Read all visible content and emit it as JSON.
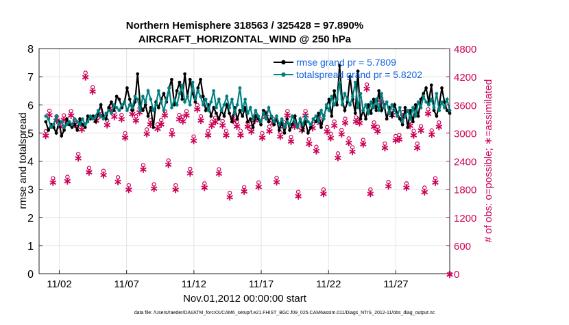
{
  "chart_data": {
    "type": "line",
    "title_line1": "Northern Hemisphere 318563 / 325428 = 97.890%",
    "title_line2": "AIRCRAFT_HORIZONTAL_WIND @ 250 hPa",
    "xlabel": "Nov.01,2012 00:00:00 start",
    "ylabel_left": "rmse and totalspread",
    "ylabel_right": "# of obs: o=possible; ∗=assimilated",
    "footer": "data file: /Users/raeder/DAI/ATM_forcXX/CAM6_setup/f.e21.FHIST_BGC.f09_025.CAM6assim.011/Diags_NTrS_2012-11/obs_diag_output.nc",
    "x_range": [
      0.5,
      31
    ],
    "x_ticks": [
      {
        "label": "11/02",
        "value": 2
      },
      {
        "label": "11/07",
        "value": 7
      },
      {
        "label": "11/12",
        "value": 12
      },
      {
        "label": "11/17",
        "value": 17
      },
      {
        "label": "11/22",
        "value": 22
      },
      {
        "label": "11/27",
        "value": 27
      }
    ],
    "y_left_range": [
      0,
      8
    ],
    "y_left_ticks": [
      "0",
      "1",
      "2",
      "3",
      "4",
      "5",
      "6",
      "7",
      "8"
    ],
    "y_right_range": [
      0,
      4800
    ],
    "y_right_ticks": [
      "0",
      "600",
      "1200",
      "1800",
      "2400",
      "3000",
      "3600",
      "4200",
      "4800"
    ],
    "colors": {
      "rmse": "#000000",
      "spread": "#008080",
      "obs": "#cc0055"
    },
    "series": [
      {
        "name": "rmse grand pr = 5.7809",
        "values": [
          5.4,
          5.1,
          5.3,
          5.2,
          5.0,
          5.4,
          4.9,
          5.1,
          5.5,
          5.3,
          5.2,
          5.3,
          5.1,
          5.5,
          5.3,
          5.2,
          5.6,
          5.5,
          5.6,
          5.4,
          5.7,
          6.0,
          5.6,
          5.5,
          5.9,
          6.1,
          5.8,
          6.3,
          6.2,
          5.9,
          6.1,
          6.6,
          6.2,
          5.8,
          6.1,
          7.1,
          6.0,
          5.8,
          6.0,
          5.6,
          5.9,
          5.2,
          6.1,
          5.9,
          6.2,
          6.4,
          6.1,
          6.6,
          6.9,
          6.0,
          6.5,
          6.8,
          6.2,
          7.1,
          6.3,
          6.9,
          6.4,
          6.1,
          6.6,
          6.9,
          6.3,
          5.8,
          6.0,
          5.6,
          5.9,
          5.7,
          5.5,
          5.8,
          5.6,
          6.0,
          5.7,
          5.4,
          5.9,
          5.5,
          5.8,
          5.6,
          5.9,
          5.4,
          5.5,
          5.2,
          5.6,
          5.5,
          5.3,
          5.8,
          5.7,
          5.4,
          5.6,
          5.3,
          5.5,
          5.1,
          5.4,
          5.0,
          5.5,
          5.1,
          5.3,
          5.6,
          5.2,
          5.5,
          5.1,
          5.4,
          5.0,
          5.2,
          5.5,
          5.4,
          5.7,
          5.2,
          5.6,
          5.9,
          6.2,
          5.6,
          6.5,
          6.0,
          7.4,
          6.2,
          5.8,
          6.1,
          7.0,
          6.2,
          5.7,
          7.2,
          5.5,
          5.8,
          5.5,
          6.0,
          5.7,
          6.2,
          5.8,
          6.5,
          5.8,
          6.0,
          5.5,
          5.9,
          5.6,
          6.0,
          5.7,
          5.5,
          5.3,
          5.9,
          5.2,
          5.8,
          5.4,
          6.0,
          5.6,
          6.2,
          6.4,
          6.6,
          6.1,
          6.7,
          5.8,
          5.6,
          6.0,
          6.6,
          6.1,
          5.8,
          5.7
        ]
      },
      {
        "name": "totalspread grand pr = 5.8202",
        "values": [
          5.6,
          5.5,
          5.2,
          5.3,
          5.6,
          5.3,
          5.4,
          5.2,
          5.3,
          5.4,
          5.3,
          5.5,
          5.4,
          5.3,
          5.5,
          5.3,
          5.4,
          5.6,
          5.5,
          5.6,
          5.8,
          5.6,
          5.5,
          5.7,
          5.8,
          5.7,
          6.0,
          5.9,
          5.8,
          6.0,
          6.1,
          5.8,
          6.0,
          5.9,
          6.3,
          6.2,
          5.8,
          6.3,
          6.1,
          6.5,
          6.2,
          5.8,
          6.0,
          6.5,
          6.1,
          5.8,
          6.2,
          6.6,
          5.9,
          6.2,
          6.0,
          6.4,
          6.7,
          6.1,
          6.3,
          6.0,
          6.8,
          6.2,
          6.5,
          6.3,
          6.0,
          6.2,
          5.8,
          6.1,
          6.5,
          5.9,
          6.2,
          5.8,
          6.0,
          6.3,
          5.9,
          6.2,
          5.7,
          6.0,
          6.6,
          5.8,
          6.2,
          5.7,
          5.9,
          5.5,
          5.8,
          5.6,
          5.4,
          5.7,
          5.5,
          5.9,
          5.6,
          5.4,
          5.6,
          5.3,
          5.5,
          5.2,
          5.4,
          5.3,
          5.6,
          5.4,
          5.2,
          5.5,
          5.3,
          5.6,
          5.4,
          5.3,
          5.5,
          5.6,
          5.4,
          5.8,
          5.5,
          6.0,
          5.8,
          6.3,
          6.0,
          6.2,
          6.8,
          6.0,
          6.4,
          6.2,
          6.0,
          6.3,
          6.8,
          5.9,
          6.4,
          5.8,
          6.0,
          5.7,
          6.1,
          5.9,
          6.2,
          5.8,
          6.4,
          5.9,
          6.1,
          5.7,
          6.0,
          5.8,
          5.6,
          5.9,
          5.4,
          5.6,
          5.8,
          5.5,
          5.9,
          5.6,
          6.1,
          5.9,
          6.3,
          6.1,
          6.0,
          6.2,
          5.9,
          6.4,
          5.8,
          6.1,
          5.9,
          6.2,
          5.8
        ]
      }
    ],
    "obs_counts": {
      "possible": [
        2960,
        3400,
        1960,
        3280,
        3150,
        3300,
        1990,
        3390,
        3200,
        2480,
        3090,
        4210,
        2180,
        3900,
        3280,
        3390,
        2120,
        3190,
        3510,
        3360,
        1980,
        3310,
        2920,
        1810,
        3420,
        3280,
        3460,
        2240,
        3000,
        3200,
        1830,
        3110,
        3200,
        3390,
        2340,
        2990,
        1810,
        3310,
        3270,
        3390,
        2160,
        2850,
        3520,
        3280,
        1850,
        2970,
        3170,
        3250,
        2150,
        3180,
        2970,
        1650,
        3280,
        3160,
        2970,
        1770,
        3150,
        3050,
        3290,
        1870,
        2920,
        3360,
        3060,
        3230,
        1970,
        2940,
        3160,
        3390,
        2840,
        3160,
        1670,
        3080,
        3390,
        2790,
        3120,
        2630,
        3230,
        1720,
        3050,
        2910,
        3170,
        2490,
        2990,
        3230,
        2810,
        2620,
        3260,
        3230,
        2780,
        3960,
        1720,
        3150,
        3060,
        3670,
        2700,
        1880,
        3400,
        2860,
        2880,
        3370,
        1850,
        3170,
        2970,
        2700,
        3070,
        1760,
        3430,
        2980,
        1960,
        3150
      ]
    },
    "legend": [
      {
        "key": "rmse",
        "label": "rmse grand pr = 5.7809"
      },
      {
        "key": "spread",
        "label": "totalspread grand pr = 5.8202"
      }
    ]
  }
}
